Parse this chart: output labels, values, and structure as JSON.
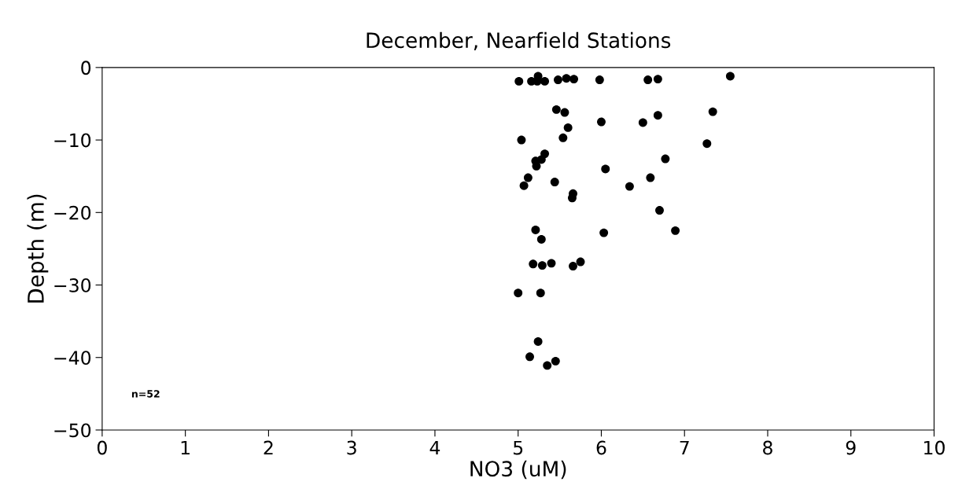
{
  "chart_data": {
    "type": "scatter",
    "title": "December, Nearfield Stations",
    "xlabel": "NO3 (uM)",
    "ylabel": "Depth (m)",
    "annotations": [
      "n=52"
    ],
    "series": [
      {
        "color": "#000000",
        "x": [
          5.01,
          5.16,
          5.24,
          5.23,
          5.32,
          5.48,
          5.58,
          5.67,
          5.98,
          6.56,
          6.68,
          7.55,
          5.46,
          5.56,
          6.0,
          5.6,
          5.04,
          5.54,
          5.32,
          5.28,
          5.21,
          5.22,
          5.12,
          5.07,
          5.44,
          6.05,
          6.34,
          5.66,
          5.65,
          5.21,
          5.28,
          6.03,
          5.18,
          5.29,
          5.4,
          5.66,
          5.75,
          5.0,
          5.27,
          5.24,
          5.14,
          5.45,
          5.35,
          6.68,
          6.5,
          7.34,
          7.27,
          6.77,
          6.59,
          6.7,
          6.89
        ],
        "values": [
          -1.9,
          -1.9,
          -1.2,
          -1.9,
          -1.9,
          -1.7,
          -1.5,
          -1.6,
          -1.7,
          -1.7,
          -1.6,
          -1.2,
          -5.8,
          -6.2,
          -7.5,
          -8.3,
          -10.0,
          -9.7,
          -11.9,
          -12.7,
          -12.9,
          -13.6,
          -15.2,
          -16.3,
          -15.8,
          -14.0,
          -16.4,
          -17.4,
          -18.0,
          -22.4,
          -23.7,
          -22.8,
          -27.1,
          -27.3,
          -27.0,
          -27.4,
          -26.8,
          -31.1,
          -31.1,
          -37.8,
          -39.9,
          -40.5,
          -41.1,
          -6.6,
          -7.6,
          -6.1,
          -10.5,
          -12.6,
          -15.2,
          -19.7,
          -22.5
        ]
      }
    ],
    "marker": "circle",
    "grid": false,
    "legend": false,
    "xlim": [
      0,
      10
    ],
    "xticks": [
      0,
      1,
      2,
      3,
      4,
      5,
      6,
      7,
      8,
      9,
      10
    ],
    "ylim": [
      -50,
      0
    ],
    "yticks": [
      -50,
      -40,
      -30,
      -20,
      -10,
      0
    ]
  }
}
